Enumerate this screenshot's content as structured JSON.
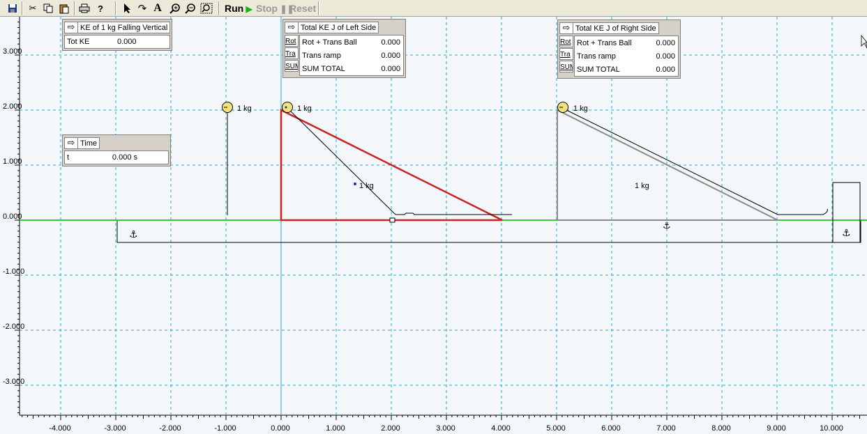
{
  "toolbar": {
    "run_label": "Run",
    "stop_label": "Stop",
    "reset_label": "Reset",
    "icons": [
      "save-icon",
      "cut-icon",
      "copy-icon",
      "paste-icon",
      "print-icon",
      "help-icon",
      "select-arrow-icon",
      "rotate-icon",
      "text-tool-icon",
      "zoom-in-icon",
      "zoom-out-icon",
      "zoom-fit-icon"
    ]
  },
  "meters": {
    "falling": {
      "title": "KE of 1 kg  Falling Vertical",
      "rows": [
        {
          "label": "Tot KE",
          "value": "0.000"
        }
      ]
    },
    "left": {
      "title": "Total KE J of Left Side",
      "side_buttons": [
        "Rot",
        "Tra",
        "SUM"
      ],
      "rows": [
        {
          "label": "Rot + Trans Ball",
          "value": "0.000"
        },
        {
          "label": "Trans ramp",
          "value": "0.000"
        },
        {
          "label": "SUM TOTAL",
          "value": "0.000"
        }
      ]
    },
    "right": {
      "title": "Total KE J of Right Side",
      "side_buttons": [
        "Rot",
        "Tra",
        "SUM"
      ],
      "rows": [
        {
          "label": "Rot + Trans Ball",
          "value": "0.000"
        },
        {
          "label": "Trans ramp",
          "value": "0.000"
        },
        {
          "label": "SUM TOTAL",
          "value": "0.000"
        }
      ]
    },
    "time": {
      "title": "Time",
      "rows": [
        {
          "label": "t",
          "value": "0.000 s"
        }
      ]
    }
  },
  "bodies": {
    "ball_falling_label": "1 kg",
    "ball_left_label": "1 kg",
    "ramp_left_label": "1 kg",
    "ball_right_label": "1 kg",
    "ramp_right_label": "1 kg"
  },
  "axes": {
    "x_ticks": [
      "-4.000",
      "-3.000",
      "-2.000",
      "-1.000",
      "0.000",
      "1.000",
      "2.000",
      "3.000",
      "4.000",
      "5.000",
      "6.000",
      "7.000",
      "8.000",
      "9.000",
      "10.000"
    ],
    "y_ticks": [
      "3.000",
      "2.000",
      "1.000",
      "0.000",
      "-1.000",
      "-2.000",
      "-3.000"
    ]
  },
  "colors": {
    "grid": "#2aa7c9",
    "ground_line": "#33cc33",
    "ramp_selected": "#cc2222",
    "ball_fill": "#f3e07a"
  }
}
